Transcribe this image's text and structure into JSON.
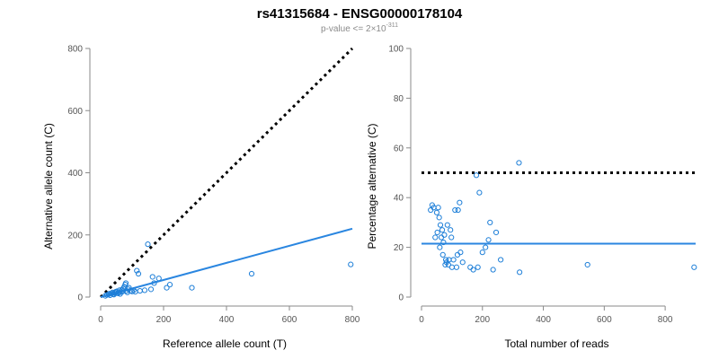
{
  "title": "rs41315684 - ENSG00000178104",
  "subtitle": {
    "prefix": "p-value <= 2×10",
    "exponent": "-311"
  },
  "colors": {
    "points": "#1e7fd8",
    "fit": "#2a86e0",
    "reference": "#000000",
    "axes": "#8a8a8a"
  },
  "chart_data": [
    {
      "type": "scatter",
      "xlabel": "Reference allele count (T)",
      "ylabel": "Alternative allele count (C)",
      "xlim": [
        0,
        800
      ],
      "ylim": [
        0,
        800
      ],
      "xticks": [
        0,
        200,
        400,
        600,
        800
      ],
      "yticks": [
        0,
        200,
        400,
        600,
        800
      ],
      "reference_line": {
        "x": [
          0,
          800
        ],
        "y": [
          0,
          800
        ],
        "style": "dotted"
      },
      "fit_line": {
        "x": [
          0,
          800
        ],
        "y": [
          0,
          220
        ]
      },
      "points": [
        [
          15,
          4
        ],
        [
          20,
          7
        ],
        [
          25,
          9
        ],
        [
          28,
          11
        ],
        [
          30,
          6
        ],
        [
          35,
          12
        ],
        [
          38,
          15
        ],
        [
          40,
          10
        ],
        [
          42,
          8
        ],
        [
          45,
          14
        ],
        [
          48,
          17
        ],
        [
          50,
          13
        ],
        [
          52,
          19
        ],
        [
          55,
          12
        ],
        [
          58,
          15
        ],
        [
          60,
          22
        ],
        [
          62,
          10
        ],
        [
          65,
          16
        ],
        [
          68,
          24
        ],
        [
          70,
          18
        ],
        [
          72,
          28
        ],
        [
          75,
          33
        ],
        [
          78,
          40
        ],
        [
          80,
          45
        ],
        [
          82,
          20
        ],
        [
          85,
          15
        ],
        [
          88,
          25
        ],
        [
          90,
          30
        ],
        [
          95,
          20
        ],
        [
          100,
          18
        ],
        [
          105,
          22
        ],
        [
          110,
          17
        ],
        [
          115,
          85
        ],
        [
          120,
          75
        ],
        [
          125,
          20
        ],
        [
          140,
          22
        ],
        [
          150,
          170
        ],
        [
          160,
          25
        ],
        [
          165,
          65
        ],
        [
          170,
          45
        ],
        [
          185,
          60
        ],
        [
          210,
          30
        ],
        [
          220,
          40
        ],
        [
          290,
          30
        ],
        [
          480,
          75
        ],
        [
          795,
          105
        ]
      ]
    },
    {
      "type": "scatter",
      "xlabel": "Total number of reads",
      "ylabel": "Percentage alternative (C)",
      "xlim": [
        0,
        900
      ],
      "ylim": [
        0,
        100
      ],
      "xticks": [
        0,
        200,
        400,
        600,
        800
      ],
      "yticks": [
        0,
        20,
        40,
        60,
        80,
        100
      ],
      "reference_line": {
        "x": [
          0,
          900
        ],
        "y": [
          50,
          50
        ],
        "style": "dotted"
      },
      "fit_line": {
        "x": [
          0,
          900
        ],
        "y": [
          21.5,
          21.5
        ]
      },
      "points": [
        [
          30,
          35
        ],
        [
          35,
          37
        ],
        [
          40,
          36
        ],
        [
          45,
          24
        ],
        [
          50,
          34
        ],
        [
          52,
          26
        ],
        [
          55,
          36
        ],
        [
          58,
          32
        ],
        [
          60,
          20
        ],
        [
          62,
          29
        ],
        [
          65,
          24
        ],
        [
          68,
          27
        ],
        [
          70,
          17
        ],
        [
          72,
          22
        ],
        [
          75,
          25
        ],
        [
          78,
          13
        ],
        [
          80,
          15
        ],
        [
          82,
          14
        ],
        [
          85,
          29
        ],
        [
          88,
          13
        ],
        [
          90,
          15
        ],
        [
          95,
          27
        ],
        [
          98,
          24
        ],
        [
          100,
          12
        ],
        [
          105,
          15
        ],
        [
          110,
          35
        ],
        [
          115,
          12
        ],
        [
          118,
          17
        ],
        [
          120,
          35
        ],
        [
          125,
          38
        ],
        [
          128,
          18
        ],
        [
          135,
          14
        ],
        [
          160,
          12
        ],
        [
          170,
          11
        ],
        [
          180,
          49
        ],
        [
          185,
          12
        ],
        [
          190,
          42
        ],
        [
          200,
          18
        ],
        [
          210,
          20
        ],
        [
          220,
          23
        ],
        [
          225,
          30
        ],
        [
          235,
          11
        ],
        [
          245,
          26
        ],
        [
          260,
          15
        ],
        [
          320,
          54
        ],
        [
          322,
          10
        ],
        [
          545,
          13
        ],
        [
          895,
          12
        ]
      ]
    }
  ]
}
